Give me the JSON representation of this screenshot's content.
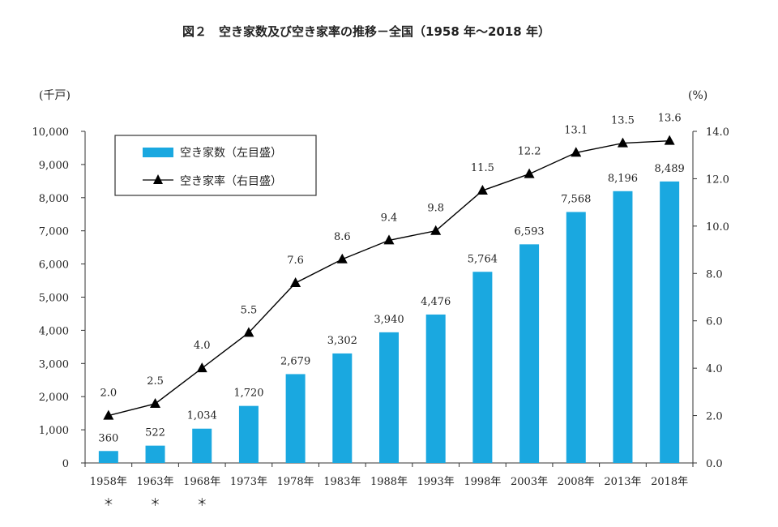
{
  "chart_data": {
    "type": "bar",
    "title": "図２　空き家数及び空き家率の推移－全国（1958 年～2018 年）",
    "categories": [
      "1958年",
      "1963年",
      "1968年",
      "1973年",
      "1978年",
      "1983年",
      "1988年",
      "1993年",
      "1998年",
      "2003年",
      "2008年",
      "2013年",
      "2018年"
    ],
    "asterisk_mark": "＊",
    "asterisk_flags": [
      true,
      true,
      true,
      false,
      false,
      false,
      false,
      false,
      false,
      false,
      false,
      false,
      false
    ],
    "left_unit": "(千戸)",
    "right_unit": "(%)",
    "left_axis": {
      "range": [
        0,
        10000
      ],
      "ticks": [
        "0",
        "1,000",
        "2,000",
        "3,000",
        "4,000",
        "5,000",
        "6,000",
        "7,000",
        "8,000",
        "9,000",
        "10,000"
      ]
    },
    "right_axis": {
      "range": [
        0,
        14
      ],
      "ticks": [
        "0.0",
        "2.0",
        "4.0",
        "6.0",
        "8.0",
        "10.0",
        "12.0",
        "14.0"
      ]
    },
    "legend": {
      "placement": "top-left"
    },
    "series": [
      {
        "name": "空き家数（左目盛）",
        "type": "bar",
        "axis": "left",
        "color": "#1aa8e0",
        "values": [
          360,
          522,
          1034,
          1720,
          2679,
          3302,
          3940,
          4476,
          5764,
          6593,
          7568,
          8196,
          8489
        ],
        "labels": [
          "360",
          "522",
          "1,034",
          "1,720",
          "2,679",
          "3,302",
          "3,940",
          "4,476",
          "5,764",
          "6,593",
          "7,568",
          "8,196",
          "8,489"
        ]
      },
      {
        "name": "空き家率（右目盛）",
        "type": "line",
        "axis": "right",
        "marker": "triangle",
        "color": "#000000",
        "values": [
          2.0,
          2.5,
          4.0,
          5.5,
          7.6,
          8.6,
          9.4,
          9.8,
          11.5,
          12.2,
          13.1,
          13.5,
          13.6
        ],
        "labels": [
          "2.0",
          "2.5",
          "4.0",
          "5.5",
          "7.6",
          "8.6",
          "9.4",
          "9.8",
          "11.5",
          "12.2",
          "13.1",
          "13.5",
          "13.6"
        ]
      }
    ]
  }
}
